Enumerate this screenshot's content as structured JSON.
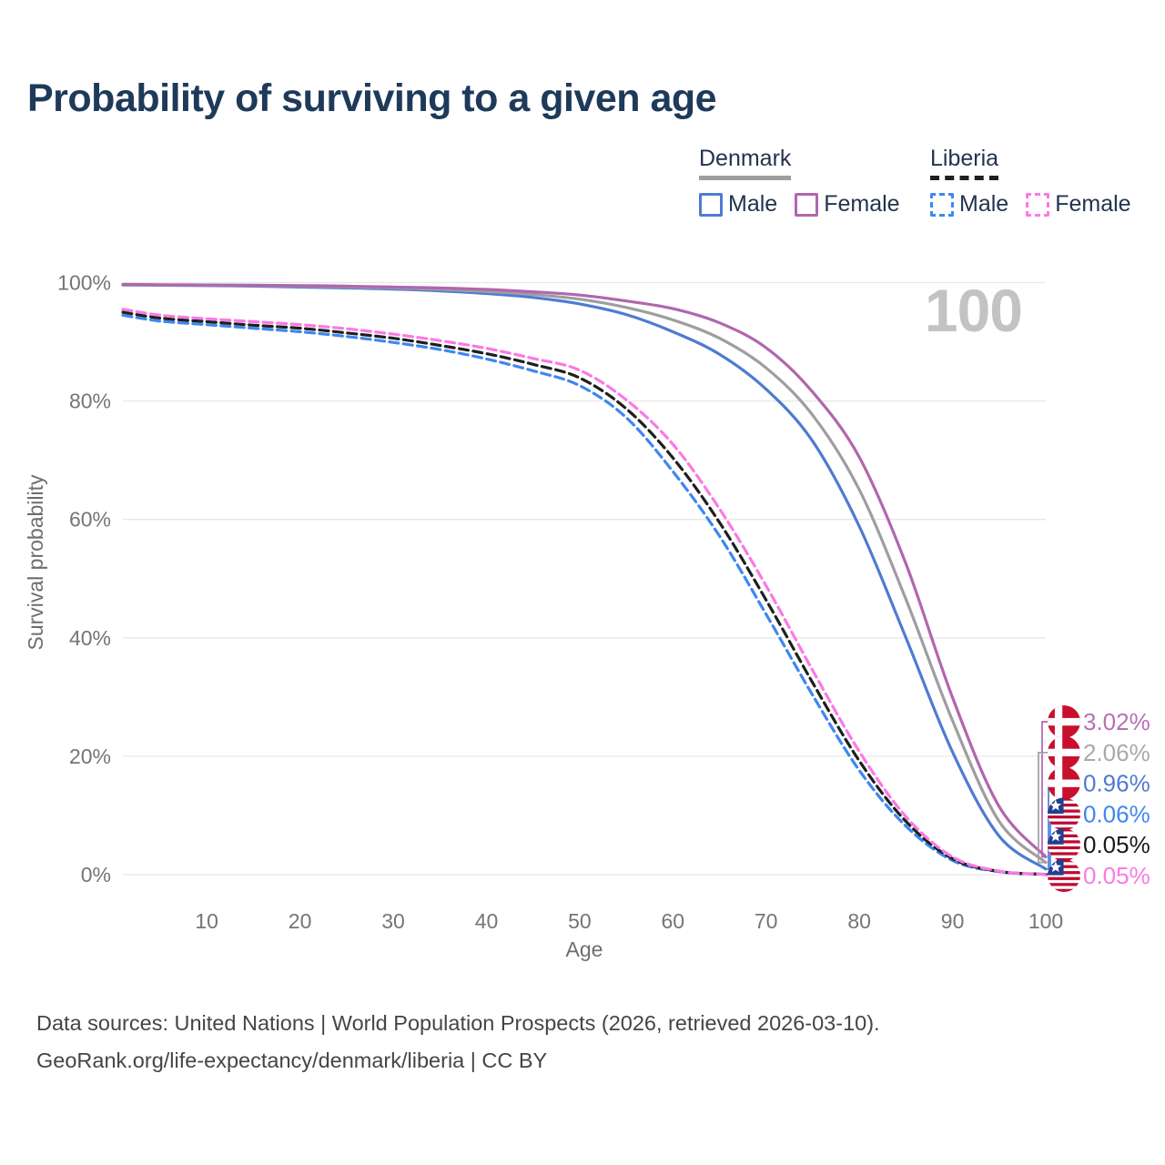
{
  "title": "Probability of surviving to a given age",
  "age_counter": "100",
  "legend": {
    "groups": [
      {
        "name": "Denmark",
        "line_style": "solid",
        "items": [
          {
            "label": "Male"
          },
          {
            "label": "Female"
          }
        ]
      },
      {
        "name": "Liberia",
        "line_style": "dashed",
        "items": [
          {
            "label": "Male"
          },
          {
            "label": "Female"
          }
        ]
      }
    ]
  },
  "chart_data": {
    "type": "line",
    "title": "Probability of surviving to a given age",
    "xlabel": "Age",
    "ylabel": "Survival probability",
    "xlim": [
      1,
      100
    ],
    "ylim": [
      0,
      100
    ],
    "grid": "horizontal",
    "legend_position": "top-right",
    "x_ticks": [
      10,
      20,
      30,
      40,
      50,
      60,
      70,
      80,
      90,
      100
    ],
    "y_ticks": [
      "0%",
      "20%",
      "40%",
      "60%",
      "80%",
      "100%"
    ],
    "x": [
      1,
      5,
      10,
      15,
      20,
      25,
      30,
      35,
      40,
      45,
      50,
      55,
      60,
      65,
      70,
      75,
      80,
      85,
      90,
      95,
      100
    ],
    "series": [
      {
        "id": "denmark_male",
        "name": "Denmark Male",
        "color": "#4e7bd2",
        "dashed": false,
        "values": [
          99.6,
          99.55,
          99.5,
          99.4,
          99.25,
          99.1,
          98.9,
          98.6,
          98.15,
          97.5,
          96.4,
          94.6,
          91.7,
          87.9,
          82.0,
          73.2,
          58.8,
          40.0,
          20.7,
          6.5,
          0.96
        ],
        "end_value_label": "0.96%"
      },
      {
        "id": "denmark_female",
        "name": "Denmark Female",
        "color": "#b166ae",
        "dashed": false,
        "values": [
          99.7,
          99.65,
          99.6,
          99.55,
          99.5,
          99.4,
          99.25,
          99.1,
          98.85,
          98.45,
          97.9,
          96.9,
          95.6,
          93.2,
          89.0,
          81.5,
          70.5,
          52.5,
          29.9,
          11.5,
          3.02
        ],
        "end_value_label": "3.02%"
      },
      {
        "id": "denmark_both",
        "name": "Denmark Both sexes",
        "color": "#9e9ea1",
        "dashed": false,
        "values": [
          99.65,
          99.6,
          99.55,
          99.5,
          99.4,
          99.25,
          99.1,
          98.85,
          98.5,
          98.0,
          97.2,
          95.8,
          93.7,
          90.6,
          85.6,
          77.6,
          65.0,
          46.5,
          26.0,
          9.0,
          2.06
        ],
        "end_value_label": "2.06%"
      },
      {
        "id": "liberia_male",
        "name": "Liberia Male",
        "color": "#3e87f0",
        "dashed": true,
        "values": [
          94.5,
          93.5,
          92.9,
          92.3,
          91.7,
          90.9,
          89.9,
          88.7,
          87.1,
          85.1,
          82.6,
          77.2,
          68.1,
          57.2,
          44.0,
          30.3,
          17.6,
          8.2,
          2.4,
          0.5,
          0.06
        ],
        "end_value_label": "0.06%"
      },
      {
        "id": "liberia_female",
        "name": "Liberia Female",
        "color": "#fb79e4",
        "dashed": true,
        "values": [
          95.5,
          94.5,
          93.9,
          93.4,
          92.9,
          92.2,
          91.3,
          90.2,
          88.9,
          87.2,
          85.2,
          80.2,
          72.7,
          61.8,
          48.8,
          34.5,
          20.8,
          9.8,
          3.0,
          0.6,
          0.05
        ],
        "end_value_label": "0.05%"
      },
      {
        "id": "liberia_both",
        "name": "Liberia Both sexes",
        "color": "#1f1f1f",
        "dashed": true,
        "values": [
          95.0,
          94.0,
          93.4,
          92.8,
          92.3,
          91.5,
          90.6,
          89.4,
          88.0,
          86.2,
          83.9,
          78.7,
          70.4,
          59.5,
          46.4,
          32.4,
          19.2,
          9.0,
          2.7,
          0.55,
          0.05
        ],
        "end_value_label": "0.05%"
      }
    ],
    "end_labels": [
      {
        "series": "denmark_female",
        "flag": "denmark",
        "text": "3.02%",
        "color": "#b671b4"
      },
      {
        "series": "denmark_both",
        "flag": "denmark",
        "text": "2.06%",
        "color": "#a9a9ad"
      },
      {
        "series": "denmark_male",
        "flag": "denmark",
        "text": "0.96%",
        "color": "#4e7bd2"
      },
      {
        "series": "liberia_male",
        "flag": "liberia",
        "text": "0.06%",
        "color": "#3e87f0"
      },
      {
        "series": "liberia_both",
        "flag": "liberia",
        "text": "0.05%",
        "color": "#1a1a1a"
      },
      {
        "series": "liberia_female",
        "flag": "liberia",
        "text": "0.05%",
        "color": "#fb79e4"
      }
    ]
  },
  "footer": {
    "line1": "Data sources: United Nations | World Population Prospects (2026, retrieved 2026-03-10).",
    "line2": "GeoRank.org/life-expectancy/denmark/liberia | CC BY"
  }
}
